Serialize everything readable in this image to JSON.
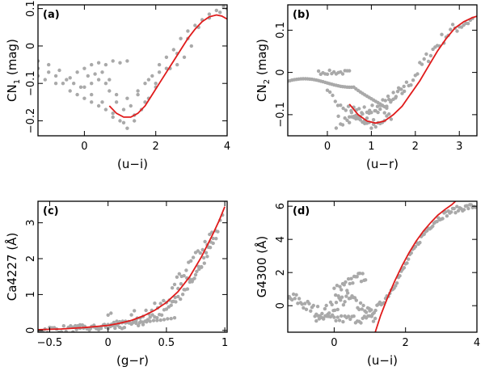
{
  "chart_data": [
    {
      "type": "scatter",
      "panel": "(a)",
      "xlabel": "(u−i)",
      "ylabel": "CN",
      "ylabel_sub": "1",
      "ylabel_unit": " (mag)",
      "xlim": [
        -1.3,
        4.0
      ],
      "ylim": [
        -0.24,
        0.11
      ],
      "xticks": [
        0,
        2,
        4
      ],
      "xtick_labels": [
        "0",
        "2",
        "4"
      ],
      "yticks": [
        -0.2,
        -0.1,
        0,
        0.1
      ],
      "ytick_labels": [
        "−0.2",
        "−0.1",
        "0",
        "0.1"
      ],
      "fit_curve": [
        [
          0.7,
          -0.16
        ],
        [
          0.9,
          -0.18
        ],
        [
          1.1,
          -0.19
        ],
        [
          1.3,
          -0.19
        ],
        [
          1.5,
          -0.18
        ],
        [
          1.7,
          -0.16
        ],
        [
          1.9,
          -0.13
        ],
        [
          2.1,
          -0.1
        ],
        [
          2.3,
          -0.07
        ],
        [
          2.5,
          -0.04
        ],
        [
          2.7,
          -0.01
        ],
        [
          2.9,
          0.02
        ],
        [
          3.1,
          0.045
        ],
        [
          3.3,
          0.065
        ],
        [
          3.5,
          0.078
        ],
        [
          3.7,
          0.083
        ],
        [
          3.85,
          0.08
        ],
        [
          4.0,
          0.072
        ]
      ],
      "scatter_groups": [
        {
          "points": [
            [
              -1.3,
              -0.06
            ],
            [
              -1.0,
              -0.07
            ],
            [
              -0.8,
              -0.08
            ],
            [
              -0.6,
              -0.1
            ],
            [
              -0.4,
              -0.12
            ],
            [
              -0.2,
              -0.13
            ],
            [
              0.0,
              -0.14
            ],
            [
              0.2,
              -0.15
            ],
            [
              0.4,
              -0.16
            ],
            [
              0.6,
              -0.17
            ],
            [
              0.8,
              -0.19
            ],
            [
              1.0,
              -0.2
            ],
            [
              1.2,
              -0.22
            ],
            [
              1.4,
              -0.2
            ],
            [
              1.6,
              -0.17
            ],
            [
              1.8,
              -0.14
            ],
            [
              2.0,
              -0.11
            ]
          ]
        },
        {
          "points": [
            [
              -1.3,
              -0.04
            ],
            [
              -1.0,
              -0.05
            ],
            [
              -0.7,
              -0.065
            ],
            [
              -0.4,
              -0.085
            ],
            [
              -0.1,
              -0.11
            ],
            [
              0.2,
              -0.13
            ],
            [
              0.5,
              -0.15
            ],
            [
              0.8,
              -0.18
            ],
            [
              1.1,
              -0.205
            ],
            [
              1.4,
              -0.185
            ],
            [
              1.7,
              -0.15
            ],
            [
              2.0,
              -0.1
            ],
            [
              2.3,
              -0.06
            ],
            [
              2.6,
              -0.02
            ],
            [
              2.9,
              0.02
            ],
            [
              3.2,
              0.05
            ],
            [
              3.5,
              0.075
            ],
            [
              3.8,
              0.09
            ],
            [
              4.0,
              0.1
            ]
          ]
        },
        {
          "points": [
            [
              -1.3,
              -0.08
            ],
            [
              -1.1,
              -0.09
            ],
            [
              -0.8,
              -0.1
            ],
            [
              -0.5,
              -0.09
            ],
            [
              -0.3,
              -0.1
            ],
            [
              0.0,
              -0.11
            ],
            [
              0.2,
              -0.1
            ],
            [
              0.4,
              -0.09
            ],
            [
              0.6,
              -0.1
            ],
            [
              0.7,
              -0.12
            ],
            [
              0.9,
              -0.15
            ],
            [
              1.1,
              -0.17
            ],
            [
              1.3,
              -0.16
            ],
            [
              1.5,
              -0.13
            ],
            [
              1.7,
              -0.1
            ],
            [
              1.9,
              -0.08
            ],
            [
              2.1,
              -0.05
            ],
            [
              2.3,
              -0.03
            ],
            [
              2.5,
              -0.01
            ],
            [
              2.7,
              0.02
            ],
            [
              2.9,
              0.04
            ],
            [
              3.1,
              0.055
            ],
            [
              3.3,
              0.07
            ],
            [
              3.5,
              0.085
            ],
            [
              3.7,
              0.095
            ],
            [
              3.9,
              0.105
            ]
          ]
        },
        {
          "points": [
            [
              0.0,
              -0.06
            ],
            [
              0.2,
              -0.05
            ],
            [
              0.4,
              -0.045
            ],
            [
              0.6,
              -0.05
            ],
            [
              0.8,
              -0.04
            ],
            [
              1.0,
              -0.045
            ],
            [
              1.2,
              -0.04
            ],
            [
              -0.2,
              -0.07
            ],
            [
              0.1,
              -0.08
            ],
            [
              0.3,
              -0.075
            ],
            [
              0.5,
              -0.07
            ],
            [
              0.7,
              -0.09
            ],
            [
              0.9,
              -0.13
            ],
            [
              1.2,
              -0.14
            ],
            [
              1.5,
              -0.12
            ],
            [
              1.8,
              -0.09
            ],
            [
              2.1,
              -0.07
            ],
            [
              2.4,
              -0.06
            ],
            [
              2.6,
              -0.05
            ],
            [
              2.8,
              -0.03
            ],
            [
              3.0,
              0.0
            ]
          ]
        }
      ]
    },
    {
      "type": "scatter",
      "panel": "(b)",
      "xlabel": "(u−r)",
      "ylabel": "CN",
      "ylabel_sub": "2",
      "ylabel_unit": " (mag)",
      "xlim": [
        -0.9,
        3.4
      ],
      "ylim": [
        -0.15,
        0.16
      ],
      "xticks": [
        0,
        1,
        2,
        3
      ],
      "xtick_labels": [
        "0",
        "1",
        "2",
        "3"
      ],
      "yticks": [
        -0.1,
        0,
        0.1
      ],
      "ytick_labels": [
        "−0.1",
        "0",
        "0.1"
      ],
      "fit_curve": [
        [
          0.5,
          -0.075
        ],
        [
          0.7,
          -0.1
        ],
        [
          0.9,
          -0.115
        ],
        [
          1.1,
          -0.12
        ],
        [
          1.3,
          -0.115
        ],
        [
          1.5,
          -0.1
        ],
        [
          1.7,
          -0.08
        ],
        [
          1.9,
          -0.05
        ],
        [
          2.1,
          -0.02
        ],
        [
          2.3,
          0.015
        ],
        [
          2.5,
          0.05
        ],
        [
          2.7,
          0.08
        ],
        [
          2.9,
          0.105
        ],
        [
          3.1,
          0.12
        ],
        [
          3.3,
          0.13
        ],
        [
          3.4,
          0.133
        ]
      ]
    },
    {
      "type": "scatter",
      "panel": "(c)",
      "xlabel": "(g−r)",
      "ylabel": "Ca4227 (Å)",
      "ylabel_sub": "",
      "ylabel_unit": "",
      "xlim": [
        -0.6,
        1.02
      ],
      "ylim": [
        -0.05,
        3.6
      ],
      "xticks": [
        -0.5,
        0,
        0.5,
        1
      ],
      "xtick_labels": [
        "−0.5",
        "0",
        "0.5",
        "1"
      ],
      "yticks": [
        0,
        1,
        2,
        3
      ],
      "ytick_labels": [
        "0",
        "1",
        "2",
        "3"
      ],
      "fit_curve": [
        [
          -0.6,
          0.02
        ],
        [
          -0.4,
          0.04
        ],
        [
          -0.2,
          0.08
        ],
        [
          0.0,
          0.14
        ],
        [
          0.1,
          0.2
        ],
        [
          0.2,
          0.28
        ],
        [
          0.3,
          0.4
        ],
        [
          0.4,
          0.56
        ],
        [
          0.5,
          0.78
        ],
        [
          0.6,
          1.08
        ],
        [
          0.7,
          1.5
        ],
        [
          0.8,
          2.05
        ],
        [
          0.9,
          2.7
        ],
        [
          0.95,
          3.05
        ],
        [
          1.0,
          3.45
        ]
      ]
    },
    {
      "type": "scatter",
      "panel": "(d)",
      "xlabel": "(u−i)",
      "ylabel": "G4300 (Å)",
      "ylabel_sub": "",
      "ylabel_unit": "",
      "xlim": [
        -1.3,
        4.0
      ],
      "ylim": [
        -1.6,
        6.3
      ],
      "xticks": [
        0,
        2,
        4
      ],
      "xtick_labels": [
        "0",
        "2",
        "4"
      ],
      "yticks": [
        0,
        2,
        4,
        6
      ],
      "ytick_labels": [
        "0",
        "2",
        "4",
        "6"
      ],
      "fit_curve": [
        [
          1.15,
          -1.6
        ],
        [
          1.3,
          -0.6
        ],
        [
          1.5,
          0.5
        ],
        [
          1.7,
          1.5
        ],
        [
          1.9,
          2.4
        ],
        [
          2.1,
          3.2
        ],
        [
          2.3,
          3.9
        ],
        [
          2.5,
          4.5
        ],
        [
          2.7,
          5.0
        ],
        [
          2.9,
          5.45
        ],
        [
          3.1,
          5.8
        ],
        [
          3.3,
          6.1
        ],
        [
          3.4,
          6.3
        ]
      ]
    }
  ]
}
